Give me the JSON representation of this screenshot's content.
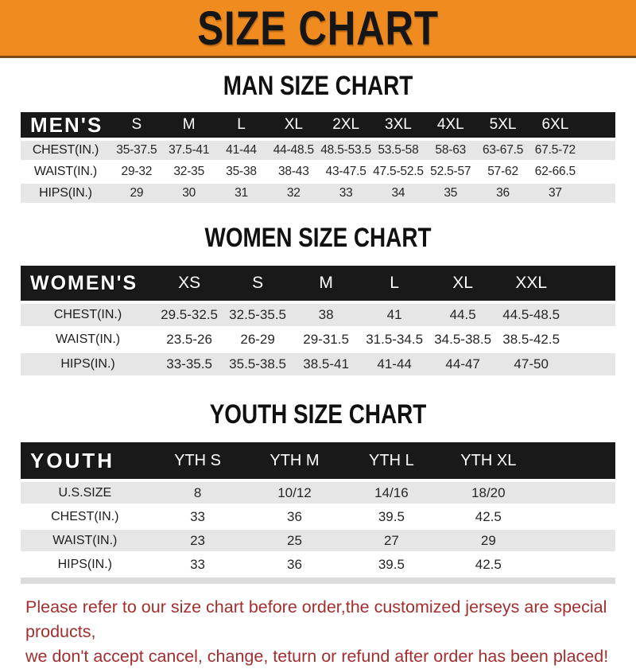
{
  "banner": {
    "title": "SIZE CHART",
    "bg_color": "#EF8B1F",
    "text_color": "#161616"
  },
  "colors": {
    "header_bar": "#191919",
    "row_shade": "#e6e6e6",
    "disclaimer_text": "#A42E2E"
  },
  "sections": [
    {
      "heading": "MAN SIZE CHART",
      "label": "MEN'S",
      "columns": [
        "S",
        "M",
        "L",
        "XL",
        "2XL",
        "3XL",
        "4XL",
        "5XL",
        "6XL"
      ],
      "rows": [
        {
          "label": "CHEST(IN.)",
          "values": [
            "35-37.5",
            "37.5-41",
            "41-44",
            "44-48.5",
            "48.5-53.5",
            "53.5-58",
            "58-63",
            "63-67.5",
            "67.5-72"
          ]
        },
        {
          "label": "WAIST(IN.)",
          "values": [
            "29-32",
            "32-35",
            "35-38",
            "38-43",
            "43-47.5",
            "47.5-52.5",
            "52.5-57",
            "57-62",
            "62-66.5"
          ]
        },
        {
          "label": "HIPS(IN.)",
          "values": [
            "29",
            "30",
            "31",
            "32",
            "33",
            "34",
            "35",
            "36",
            "37"
          ]
        }
      ]
    },
    {
      "heading": "WOMEN SIZE CHART",
      "label": "WOMEN'S",
      "columns": [
        "XS",
        "S",
        "M",
        "L",
        "XL",
        "XXL"
      ],
      "rows": [
        {
          "label": "CHEST(IN.)",
          "values": [
            "29.5-32.5",
            "32.5-35.5",
            "38",
            "41",
            "44.5",
            "44.5-48.5"
          ]
        },
        {
          "label": "WAIST(IN.)",
          "values": [
            "23.5-26",
            "26-29",
            "29-31.5",
            "31.5-34.5",
            "34.5-38.5",
            "38.5-42.5"
          ]
        },
        {
          "label": "HIPS(IN.)",
          "values": [
            "33-35.5",
            "35.5-38.5",
            "38.5-41",
            "41-44",
            "44-47",
            "47-50"
          ]
        }
      ]
    },
    {
      "heading": "YOUTH SIZE CHART",
      "label": "YOUTH",
      "columns": [
        "YTH S",
        "YTH M",
        "YTH L",
        "YTH XL"
      ],
      "rows": [
        {
          "label": "U.S.SIZE",
          "values": [
            "8",
            "10/12",
            "14/16",
            "18/20"
          ]
        },
        {
          "label": "CHEST(IN.)",
          "values": [
            "33",
            "36",
            "39.5",
            "42.5"
          ]
        },
        {
          "label": "WAIST(IN.)",
          "values": [
            "23",
            "25",
            "27",
            "29"
          ]
        },
        {
          "label": "HIPS(IN.)",
          "values": [
            "33",
            "36",
            "39.5",
            "42.5"
          ]
        }
      ]
    }
  ],
  "disclaimer": {
    "line1": "Please refer to our size chart before order,the customized jerseys are special products,",
    "line2": "we don't accept cancel, change, teturn or refund after order has been placed!"
  }
}
